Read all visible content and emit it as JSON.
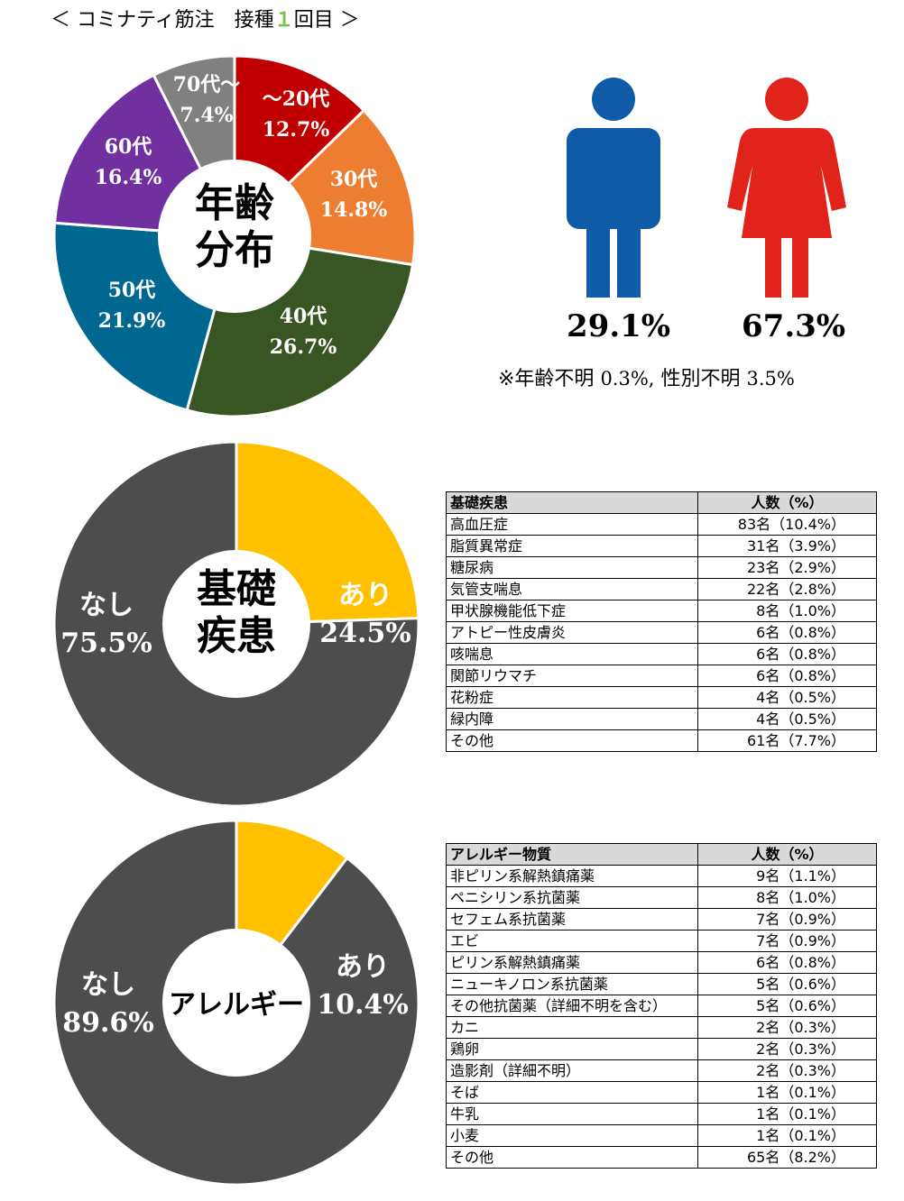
{
  "header": {
    "prefix": "＜ コミナティ筋注　接種",
    "dose_number": "１",
    "suffix": "回目 ＞"
  },
  "chart_data": [
    {
      "type": "pie",
      "center_label": [
        "年齢",
        "分布"
      ],
      "slices": [
        {
          "label": "～20代",
          "value": 12.7,
          "value_label": "12.7%",
          "color": "#c00000"
        },
        {
          "label": "30代",
          "value": 14.8,
          "value_label": "14.8%",
          "color": "#ed7d31"
        },
        {
          "label": "40代",
          "value": 26.7,
          "value_label": "26.7%",
          "color": "#375623"
        },
        {
          "label": "50代",
          "value": 21.9,
          "value_label": "21.9%",
          "color": "#006890"
        },
        {
          "label": "60代",
          "value": 16.4,
          "value_label": "16.4%",
          "color": "#7030a0"
        },
        {
          "label": "70代～",
          "value": 7.4,
          "value_label": "7.4%",
          "color": "#808080"
        }
      ]
    },
    {
      "type": "pie",
      "center_label": [
        "基礎",
        "疾患"
      ],
      "slices": [
        {
          "label": "あり",
          "value": 24.5,
          "value_label": "24.5%",
          "color": "#ffc000"
        },
        {
          "label": "なし",
          "value": 75.5,
          "value_label": "75.5%",
          "color": "#4d4d4d"
        }
      ]
    },
    {
      "type": "pie",
      "center_label": [
        "アレルギー"
      ],
      "slices": [
        {
          "label": "あり",
          "value": 10.4,
          "value_label": "10.4%",
          "color": "#ffc000"
        },
        {
          "label": "なし",
          "value": 89.6,
          "value_label": "89.6%",
          "color": "#4d4d4d"
        }
      ]
    }
  ],
  "gender": {
    "male_pct": "29.1%",
    "female_pct": "67.3%",
    "male_color": "#0f5ba7",
    "female_color": "#e0231b",
    "male_icon": "male-person-icon",
    "female_icon": "female-person-icon",
    "note_age_label": "※年齢不明",
    "note_age_value": "0.3%,",
    "note_sex_label": "性別不明",
    "note_sex_value": "3.5%"
  },
  "disease_table": {
    "col1": "基礎疾患",
    "col2": "人数（%）",
    "rows": [
      [
        "高血圧症",
        "83名（10.4%）"
      ],
      [
        "脂質異常症",
        "31名（3.9%）"
      ],
      [
        "糖尿病",
        "23名（2.9%）"
      ],
      [
        "気管支喘息",
        "22名（2.8%）"
      ],
      [
        "甲状腺機能低下症",
        "8名（1.0%）"
      ],
      [
        "アトピー性皮膚炎",
        "6名（0.8%）"
      ],
      [
        "咳喘息",
        "6名（0.8%）"
      ],
      [
        "関節リウマチ",
        "6名（0.8%）"
      ],
      [
        "花粉症",
        "4名（0.5%）"
      ],
      [
        "緑内障",
        "4名（0.5%）"
      ],
      [
        "その他",
        "61名（7.7%）"
      ]
    ]
  },
  "allergy_table": {
    "col1": "アレルギー物質",
    "col2": "人数（%）",
    "rows": [
      [
        "非ピリン系解熱鎮痛薬",
        "9名（1.1%）"
      ],
      [
        "ペニシリン系抗菌薬",
        "8名（1.0%）"
      ],
      [
        "セフェム系抗菌薬",
        "7名（0.9%）"
      ],
      [
        "エビ",
        "7名（0.9%）"
      ],
      [
        "ピリン系解熱鎮痛薬",
        "6名（0.8%）"
      ],
      [
        "ニューキノロン系抗菌薬",
        "5名（0.6%）"
      ],
      [
        "その他抗菌薬（詳細不明を含む）",
        "5名（0.6%）"
      ],
      [
        "カニ",
        "2名（0.3%）"
      ],
      [
        "鶏卵",
        "2名（0.3%）"
      ],
      [
        "造影剤（詳細不明）",
        "2名（0.3%）"
      ],
      [
        "そば",
        "1名（0.1%）"
      ],
      [
        "牛乳",
        "1名（0.1%）"
      ],
      [
        "小麦",
        "1名（0.1%）"
      ],
      [
        "その他",
        "65名（8.2%）"
      ]
    ]
  }
}
